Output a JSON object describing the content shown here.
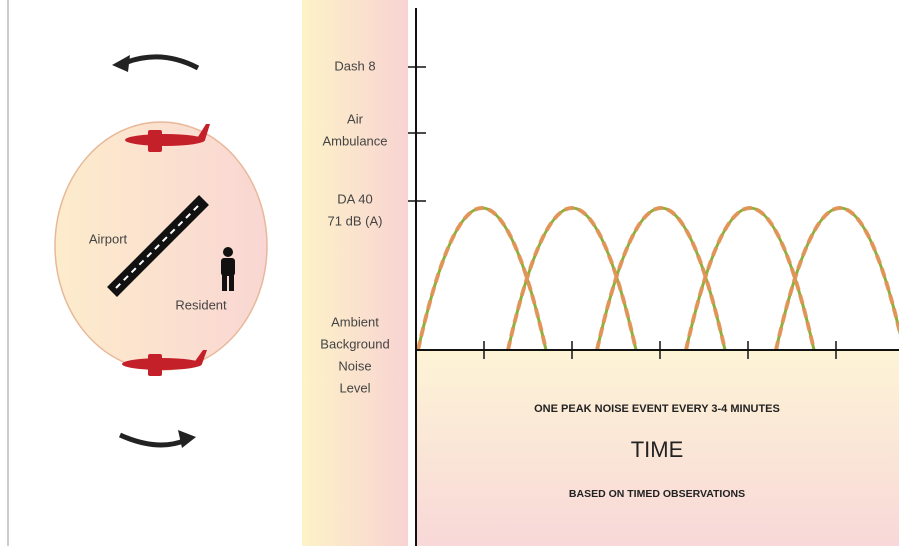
{
  "left": {
    "airport": "Airport",
    "resident": "Resident"
  },
  "scale": {
    "labels": [
      [
        "Dash 8"
      ],
      [
        "Air",
        "Ambulance"
      ],
      [
        "DA 40",
        "71 dB (A)"
      ],
      [
        "Ambient",
        "Background",
        "Noise",
        "Level"
      ]
    ]
  },
  "time_axis": {
    "caption": "ONE PEAK NOISE EVENT EVERY 3-4 MINUTES",
    "label": "TIME",
    "note": "BASED ON TIMED OBSERVATIONS"
  }
}
